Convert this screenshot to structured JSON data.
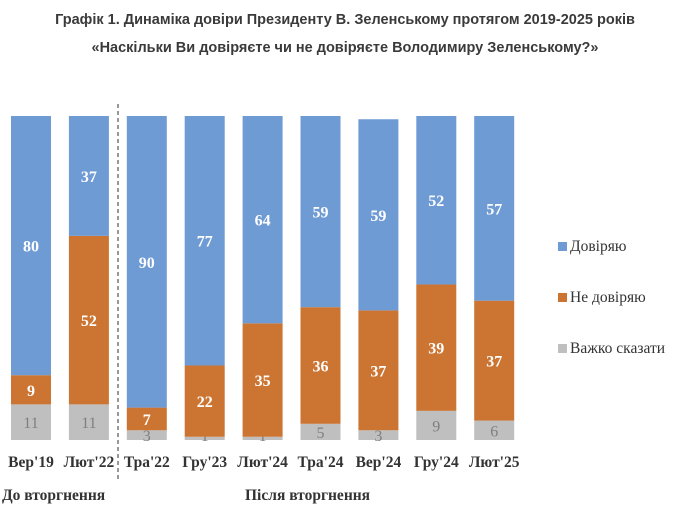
{
  "chart_data": {
    "type": "bar",
    "stacked": true,
    "title": "Графік 1. Динаміка довіри Президенту В. Зеленському протягом 2019-2025 років",
    "subtitle": "«Наскільки Ви довіряєте чи не довіряєте Володимиру Зеленському?»",
    "categories": [
      "Вер'19",
      "Лют'22",
      "Тра'22",
      "Гру'23",
      "Лют'24",
      "Тра'24",
      "Вер'24",
      "Гру'24",
      "Лют'25"
    ],
    "series": [
      {
        "name": "Довіряю",
        "color": "#6f9bd5",
        "values": [
          80,
          37,
          90,
          77,
          64,
          59,
          59,
          52,
          57
        ]
      },
      {
        "name": "Не довіряю",
        "color": "#cc7432",
        "values": [
          9,
          52,
          7,
          22,
          35,
          36,
          37,
          39,
          37
        ]
      },
      {
        "name": "Важко сказати",
        "color": "#bfbfbf",
        "values": [
          11,
          11,
          3,
          1,
          1,
          5,
          3,
          9,
          6
        ]
      }
    ],
    "groups": [
      {
        "label": "До вторгнення"
      },
      {
        "label": "Після вторгнення"
      }
    ],
    "ylim": [
      0,
      100
    ],
    "legend_position": "right",
    "grid": false
  }
}
